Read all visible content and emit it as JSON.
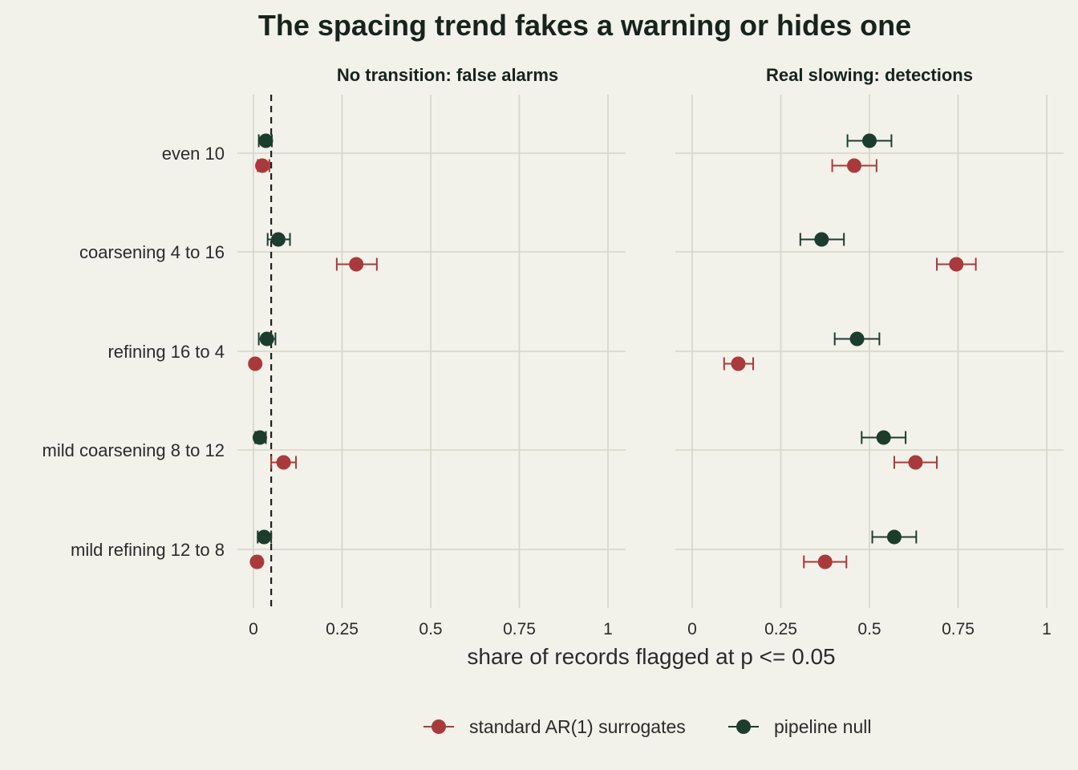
{
  "chart_data": {
    "type": "scatter",
    "title": "The spacing trend fakes a warning or hides one",
    "xlabel": "share of records flagged at p <= 0.05",
    "ylabel": "",
    "xlim": [
      0,
      1
    ],
    "x_ticks": [
      0,
      0.25,
      0.5,
      0.75,
      1
    ],
    "x_tick_labels": [
      "0",
      "0.25",
      "0.5",
      "0.75",
      "1"
    ],
    "reference_line": 0.05,
    "categories": [
      "even 10",
      "coarsening 4 to 16",
      "refining 16 to 4",
      "mild coarsening 8 to 12",
      "mild refining 12 to 8"
    ],
    "legend_position": "bottom",
    "grid": true,
    "colors": {
      "standard": "#a83a3c",
      "pipeline": "#1d3d2c"
    },
    "series": [
      {
        "name": "standard AR(1) surrogates",
        "key": "standard"
      },
      {
        "name": "pipeline null",
        "key": "pipeline"
      }
    ],
    "panels": [
      {
        "title": "No transition: false alarms",
        "standard": [
          {
            "value": 0.025,
            "low": 0.012,
            "high": 0.045
          },
          {
            "value": 0.29,
            "low": 0.235,
            "high": 0.348
          },
          {
            "value": 0.005,
            "low": 0.001,
            "high": 0.012
          },
          {
            "value": 0.085,
            "low": 0.05,
            "high": 0.12
          },
          {
            "value": 0.01,
            "low": 0.002,
            "high": 0.02
          }
        ],
        "pipeline": [
          {
            "value": 0.035,
            "low": 0.015,
            "high": 0.052
          },
          {
            "value": 0.07,
            "low": 0.04,
            "high": 0.103
          },
          {
            "value": 0.038,
            "low": 0.015,
            "high": 0.062
          },
          {
            "value": 0.018,
            "low": 0.005,
            "high": 0.035
          },
          {
            "value": 0.03,
            "low": 0.012,
            "high": 0.05
          }
        ]
      },
      {
        "title": "Real slowing: detections",
        "standard": [
          {
            "value": 0.457,
            "low": 0.395,
            "high": 0.52
          },
          {
            "value": 0.745,
            "low": 0.69,
            "high": 0.8
          },
          {
            "value": 0.13,
            "low": 0.09,
            "high": 0.172
          },
          {
            "value": 0.63,
            "low": 0.57,
            "high": 0.69
          },
          {
            "value": 0.375,
            "low": 0.315,
            "high": 0.435
          }
        ],
        "pipeline": [
          {
            "value": 0.5,
            "low": 0.438,
            "high": 0.562
          },
          {
            "value": 0.365,
            "low": 0.305,
            "high": 0.428
          },
          {
            "value": 0.465,
            "low": 0.402,
            "high": 0.528
          },
          {
            "value": 0.54,
            "low": 0.478,
            "high": 0.602
          },
          {
            "value": 0.57,
            "low": 0.508,
            "high": 0.632
          }
        ]
      }
    ]
  }
}
